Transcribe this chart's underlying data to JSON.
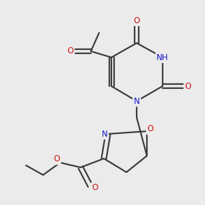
{
  "bg_color": "#ebebeb",
  "bond_color": "#3a3a3a",
  "N_color": "#1414cc",
  "O_color": "#cc1414",
  "H_color": "#4a8888",
  "line_width": 1.6,
  "font_size": 8.5,
  "fig_size": [
    3.0,
    3.0
  ],
  "dpi": 100,
  "xlim": [
    0,
    300
  ],
  "ylim": [
    0,
    300
  ]
}
